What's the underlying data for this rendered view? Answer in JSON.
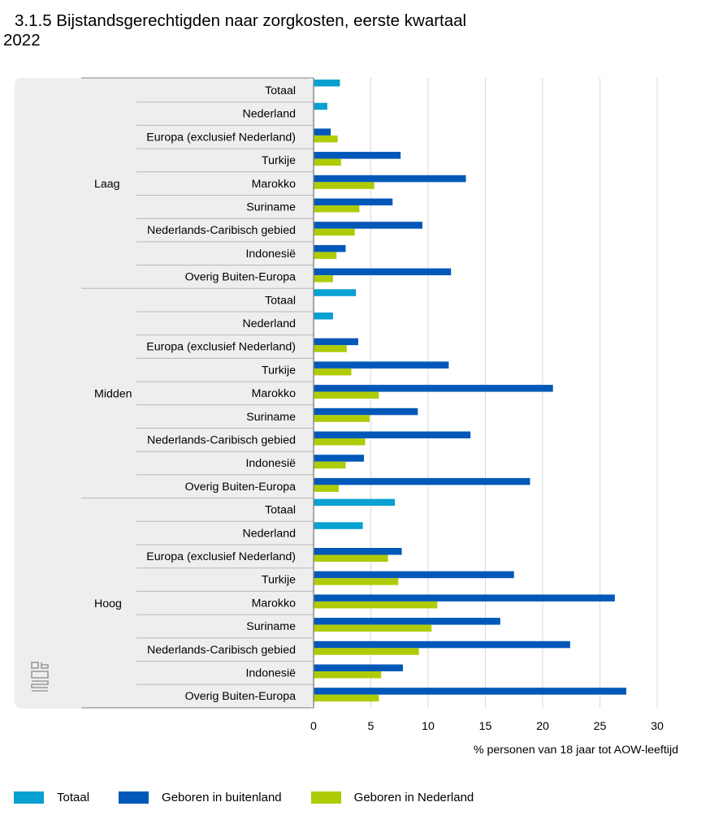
{
  "title": "3.1.5 Bijstandsgerechtigden naar zorgkosten, eerste kwartaal 2022",
  "colors": {
    "totaal": "#09A0D2",
    "buitenland": "#0058B8",
    "nederland": "#AFCB05",
    "panel": "#EEEEEE",
    "grid": "#D9D9D9",
    "axis": "#888888"
  },
  "chart_data": {
    "type": "bar",
    "orientation": "horizontal",
    "title": "3.1.5 Bijstandsgerechtigden naar zorgkosten, eerste kwartaal 2022",
    "xlabel": "% personen van 18 jaar tot AOW-leeftijd",
    "ylabel": "",
    "xlim": [
      0,
      30
    ],
    "xticks": [
      0,
      5,
      10,
      15,
      20,
      25,
      30
    ],
    "grid": true,
    "legend_position": "bottom",
    "series": [
      {
        "name": "Totaal",
        "key": "totaal"
      },
      {
        "name": "Geboren in buitenland",
        "key": "buitenland"
      },
      {
        "name": "Geboren in Nederland",
        "key": "nederland"
      }
    ],
    "groups": [
      {
        "label": "Laag",
        "rows": [
          {
            "label": "Totaal",
            "totaal": 2.3
          },
          {
            "label": "Nederland",
            "totaal": 1.2
          },
          {
            "label": "Europa (exclusief Nederland)",
            "buitenland": 1.5,
            "nederland": 2.1
          },
          {
            "label": "Turkije",
            "buitenland": 7.6,
            "nederland": 2.4
          },
          {
            "label": "Marokko",
            "buitenland": 13.3,
            "nederland": 5.3
          },
          {
            "label": "Suriname",
            "buitenland": 6.9,
            "nederland": 4.0
          },
          {
            "label": "Nederlands-Caribisch gebied",
            "buitenland": 9.5,
            "nederland": 3.6
          },
          {
            "label": "Indonesië",
            "buitenland": 2.8,
            "nederland": 2.0
          },
          {
            "label": "Overig Buiten-Europa",
            "buitenland": 12.0,
            "nederland": 1.7
          }
        ]
      },
      {
        "label": "Midden",
        "rows": [
          {
            "label": "Totaal",
            "totaal": 3.7
          },
          {
            "label": "Nederland",
            "totaal": 1.7
          },
          {
            "label": "Europa (exclusief Nederland)",
            "buitenland": 3.9,
            "nederland": 2.9
          },
          {
            "label": "Turkije",
            "buitenland": 11.8,
            "nederland": 3.3
          },
          {
            "label": "Marokko",
            "buitenland": 20.9,
            "nederland": 5.7
          },
          {
            "label": "Suriname",
            "buitenland": 9.1,
            "nederland": 4.9
          },
          {
            "label": "Nederlands-Caribisch gebied",
            "buitenland": 13.7,
            "nederland": 4.5
          },
          {
            "label": "Indonesië",
            "buitenland": 4.4,
            "nederland": 2.8
          },
          {
            "label": "Overig Buiten-Europa",
            "buitenland": 18.9,
            "nederland": 2.2
          }
        ]
      },
      {
        "label": "Hoog",
        "rows": [
          {
            "label": "Totaal",
            "totaal": 7.1
          },
          {
            "label": "Nederland",
            "totaal": 4.3
          },
          {
            "label": "Europa (exclusief Nederland)",
            "buitenland": 7.7,
            "nederland": 6.5
          },
          {
            "label": "Turkije",
            "buitenland": 17.5,
            "nederland": 7.4
          },
          {
            "label": "Marokko",
            "buitenland": 26.3,
            "nederland": 10.8
          },
          {
            "label": "Suriname",
            "buitenland": 16.3,
            "nederland": 10.3
          },
          {
            "label": "Nederlands-Caribisch gebied",
            "buitenland": 22.4,
            "nederland": 9.2
          },
          {
            "label": "Indonesië",
            "buitenland": 7.8,
            "nederland": 5.9
          },
          {
            "label": "Overig Buiten-Europa",
            "buitenland": 27.3,
            "nederland": 5.7
          }
        ]
      }
    ]
  },
  "legend": [
    {
      "label": "Totaal",
      "color_key": "totaal"
    },
    {
      "label": "Geboren in buitenland",
      "color_key": "buitenland"
    },
    {
      "label": "Geboren in Nederland",
      "color_key": "nederland"
    }
  ],
  "logo": {
    "icon": "cbs-logo-icon"
  }
}
